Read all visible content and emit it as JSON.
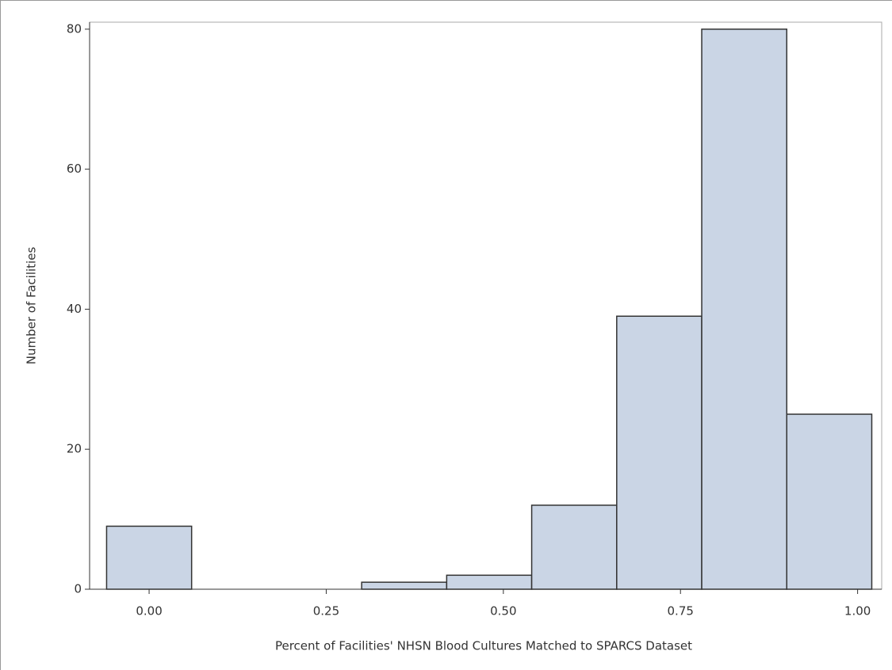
{
  "chart_data": {
    "type": "histogram",
    "xlabel": "Percent of Facilities' NHSN Blood Cultures Matched to SPARCS Dataset",
    "ylabel": "Number of Facilities",
    "bins": [
      -0.06,
      0.06,
      0.18,
      0.3,
      0.42,
      0.54,
      0.66,
      0.78,
      0.9,
      1.02
    ],
    "values": [
      9,
      0,
      0,
      1,
      2,
      12,
      39,
      80,
      25
    ],
    "color": "#cad5e5",
    "edge_color": "#333333",
    "xlim": [
      -0.084,
      1.034
    ],
    "ylim": [
      0,
      81
    ],
    "xticks": [
      {
        "value": 0,
        "label": "0.00"
      },
      {
        "value": 0.25,
        "label": "0.25"
      },
      {
        "value": 0.5,
        "label": "0.50"
      },
      {
        "value": 0.75,
        "label": "0.75"
      },
      {
        "value": 1,
        "label": "1.00"
      }
    ],
    "yticks": [
      0,
      20,
      40,
      60,
      80
    ]
  }
}
